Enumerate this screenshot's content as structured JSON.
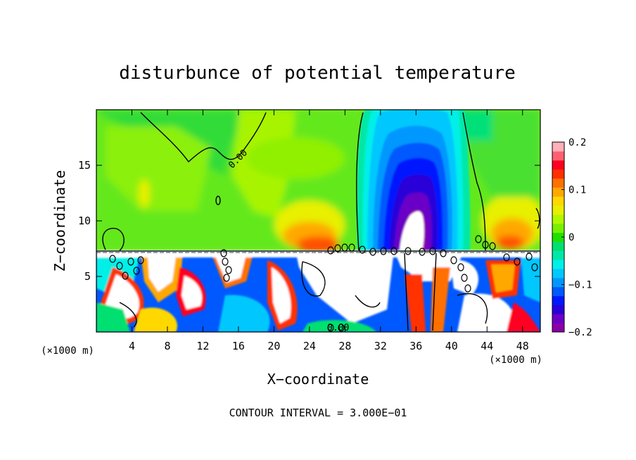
{
  "chart_data": {
    "type": "heatmap",
    "title": "disturbunce of potential temperature",
    "xlabel": "X−coordinate",
    "ylabel": "Z−coordinate",
    "x_unit_label": "(×1000 m)",
    "y_unit_label": "(×1000 m)",
    "footer": "CONTOUR INTERVAL = 3.000E−01",
    "xlim": [
      0,
      50
    ],
    "ylim": [
      0,
      20
    ],
    "x_ticks": [
      4,
      8,
      12,
      16,
      20,
      24,
      28,
      32,
      36,
      40,
      44,
      48
    ],
    "y_ticks": [
      5,
      10,
      15
    ],
    "colorbar": {
      "range": [
        -0.2,
        0.2
      ],
      "tick_values": [
        0.2,
        0.1,
        0,
        -0.1,
        -0.2
      ],
      "tick_labels": [
        "0.2",
        "0.1",
        "0",
        "−0.1",
        "−0.2"
      ],
      "colors": [
        "#8a00a8",
        "#6a00c8",
        "#2a00d8",
        "#0018ff",
        "#0058ff",
        "#0098ff",
        "#00c8ff",
        "#00f0e8",
        "#00e8a8",
        "#00e070",
        "#20e000",
        "#78f000",
        "#b0f800",
        "#e8f000",
        "#ffd800",
        "#ffa800",
        "#ff7000",
        "#ff3000",
        "#ff0020",
        "#ff6070",
        "#ffb0b8"
      ]
    },
    "contour_labels": [
      {
        "text": "0.00",
        "x": 14.5,
        "z": 15.7
      },
      {
        "text": "0.00",
        "x": 26.5,
        "z": 0.3
      }
    ],
    "features": [
      {
        "kind": "negative_plume",
        "center_x": 35,
        "min_value": -0.2,
        "z_range": [
          7.5,
          20
        ]
      },
      {
        "kind": "positive_region",
        "center_x": 25,
        "z_range": [
          7.5,
          10.5
        ],
        "max_value": 0.12
      },
      {
        "kind": "positive_region",
        "center_x": 46,
        "z_range": [
          7.5,
          10.5
        ],
        "max_value": 0.12
      },
      {
        "kind": "turbulent_layer",
        "z_range": [
          0,
          7.4
        ]
      }
    ]
  }
}
